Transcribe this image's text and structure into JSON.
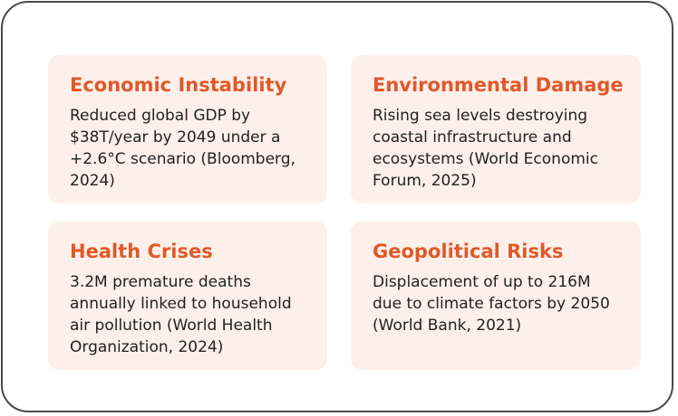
{
  "cards": [
    {
      "title": "Economic Instability",
      "body": "Reduced global GDP by $38T/year by 2049 under a +2.6°C scenario (Bloomberg, 2024)"
    },
    {
      "title": "Environmental Damage",
      "body": "Rising sea levels destroying coastal infrastructure and ecosystems (World Economic Forum, 2025)"
    },
    {
      "title": "Health Crises",
      "body": "3.2M premature deaths annually linked to household air pollution (World Health Organization, 2024)"
    },
    {
      "title": "Geopolitical Risks",
      "body": "Displacement of up to 216M due to climate factors by 2050 (World Bank, 2021)"
    }
  ],
  "colors": {
    "accent": "#e0592a",
    "card_background": "#fdf0ea",
    "text": "#222222",
    "frame_border": "#4a4a4a"
  }
}
